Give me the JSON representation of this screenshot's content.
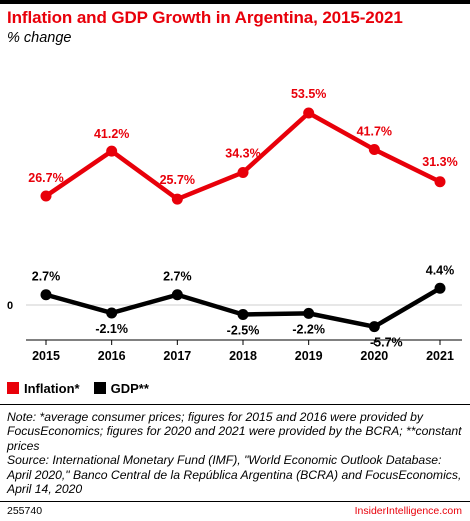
{
  "header": {
    "title": "Inflation and GDP Growth in Argentina, 2015-2021",
    "subtitle": "% change"
  },
  "colors": {
    "inflation": "#e8000a",
    "gdp": "#000000",
    "brand_red": "#e8000a"
  },
  "chart_data": {
    "type": "line",
    "title": "Inflation and GDP Growth in Argentina, 2015-2021",
    "subtitle": "% change",
    "categories": [
      "2015",
      "2016",
      "2017",
      "2018",
      "2019",
      "2020",
      "2021"
    ],
    "series": [
      {
        "name": "Inflation*",
        "values": [
          26.7,
          41.2,
          25.7,
          34.3,
          53.5,
          41.7,
          31.3
        ],
        "labels": [
          "26.7%",
          "41.2%",
          "25.7%",
          "34.3%",
          "53.5%",
          "41.7%",
          "31.3%"
        ]
      },
      {
        "name": "GDP**",
        "values": [
          2.7,
          -2.1,
          2.7,
          -2.5,
          -2.2,
          -5.7,
          4.4
        ],
        "labels": [
          "2.7%",
          "-2.1%",
          "2.7%",
          "-2.5%",
          "-2.2%",
          "-5.7%",
          "4.4%"
        ]
      }
    ],
    "y_ticks": [
      {
        "value": 0,
        "label": "0"
      }
    ],
    "grid": false,
    "legend": "bottom-left"
  },
  "notes": {
    "note": "Note: *average consumer prices; figures for 2015 and 2016 were provided by FocusEconomics; figures for 2020 and 2021 were provided by the BCRA; **constant prices",
    "source": "Source: International Monetary Fund (IMF), \"World Economic Outlook Database: April 2020,\" Banco Central de la República Argentina (BCRA) and FocusEconomics, April 14, 2020"
  },
  "footer": {
    "id": "255740",
    "brand": "InsiderIntelligence.com"
  }
}
